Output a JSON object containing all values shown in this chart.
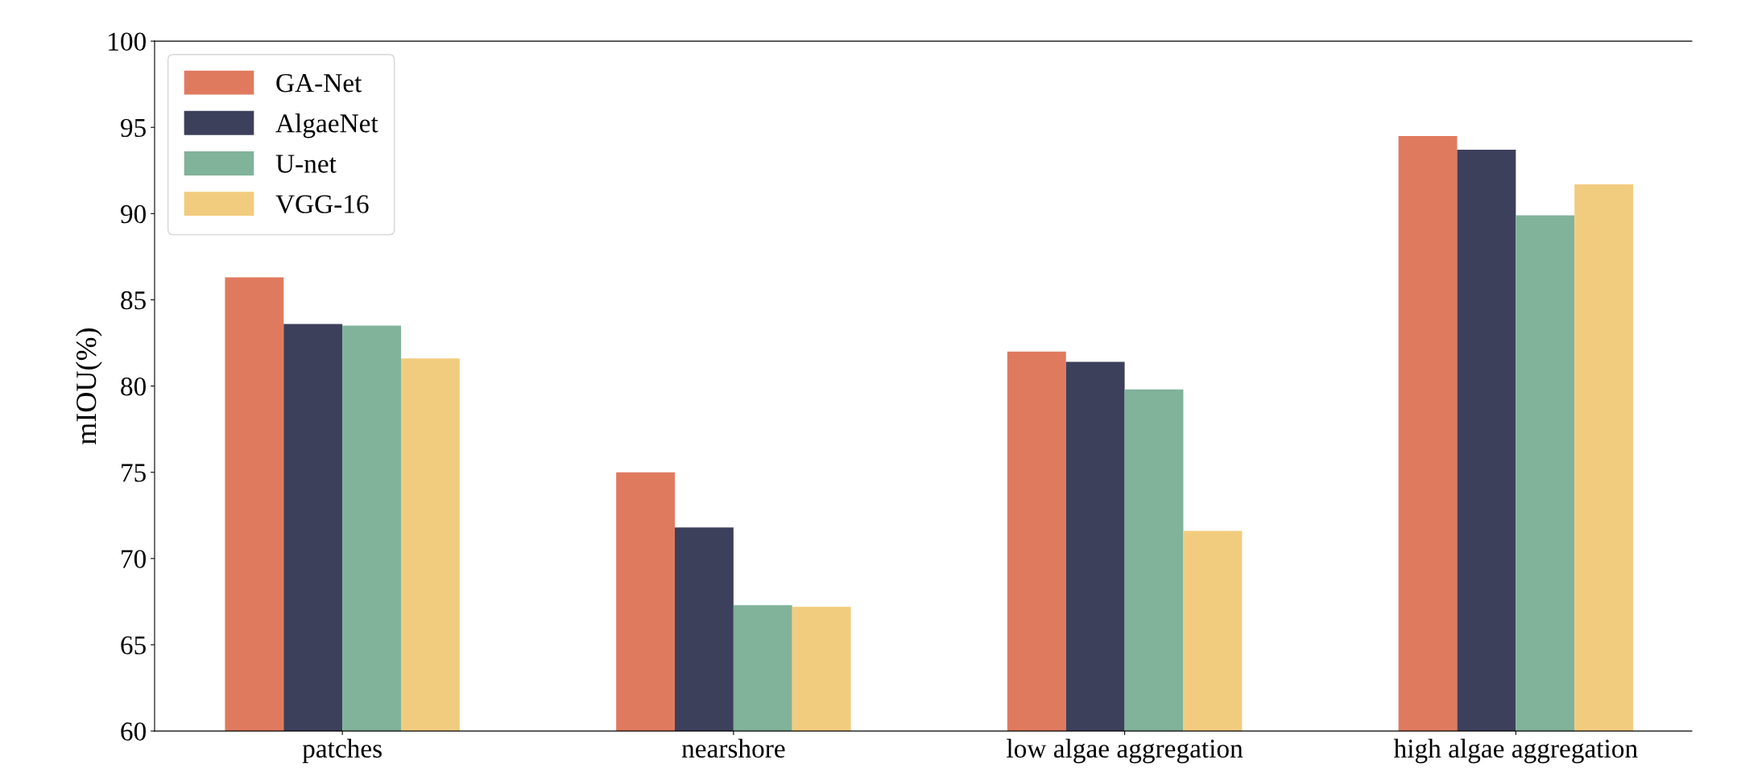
{
  "chart_data": {
    "type": "bar",
    "ylabel": "mIOU(%)",
    "categories": [
      "patches",
      "nearshore",
      "low algae aggregation",
      "high algae aggregation"
    ],
    "series": [
      {
        "name": "GA-Net",
        "color": "#e07a5f",
        "values": [
          86.3,
          75.0,
          82.0,
          94.5
        ]
      },
      {
        "name": "AlgaeNet",
        "color": "#3d405b",
        "values": [
          83.6,
          71.8,
          81.4,
          93.7
        ]
      },
      {
        "name": "U-net",
        "color": "#81b29a",
        "values": [
          83.5,
          67.3,
          79.8,
          89.9
        ]
      },
      {
        "name": "VGG-16",
        "color": "#f2cc7e",
        "values": [
          81.6,
          67.2,
          71.6,
          91.7
        ]
      }
    ],
    "ylim": [
      60,
      100
    ],
    "yticks": [
      60,
      65,
      70,
      75,
      80,
      85,
      90,
      95,
      100
    ],
    "grid": false,
    "legend": "top left"
  }
}
